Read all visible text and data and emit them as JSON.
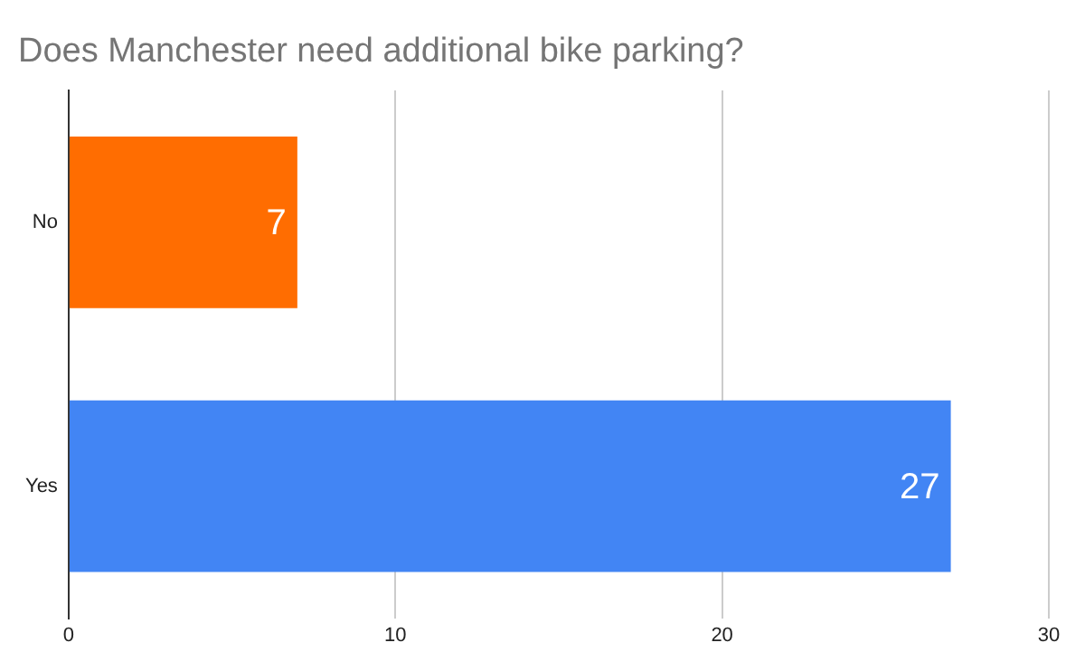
{
  "chart_data": {
    "type": "bar",
    "orientation": "horizontal",
    "title": "Does Manchester need additional bike parking?",
    "categories": [
      "No",
      "Yes"
    ],
    "values": [
      7,
      27
    ],
    "colors": [
      "#ff6d01",
      "#4285f4"
    ],
    "xlim": [
      0,
      30
    ],
    "xticks": [
      0,
      10,
      20,
      30
    ],
    "grid": "x",
    "data_labels": true
  }
}
